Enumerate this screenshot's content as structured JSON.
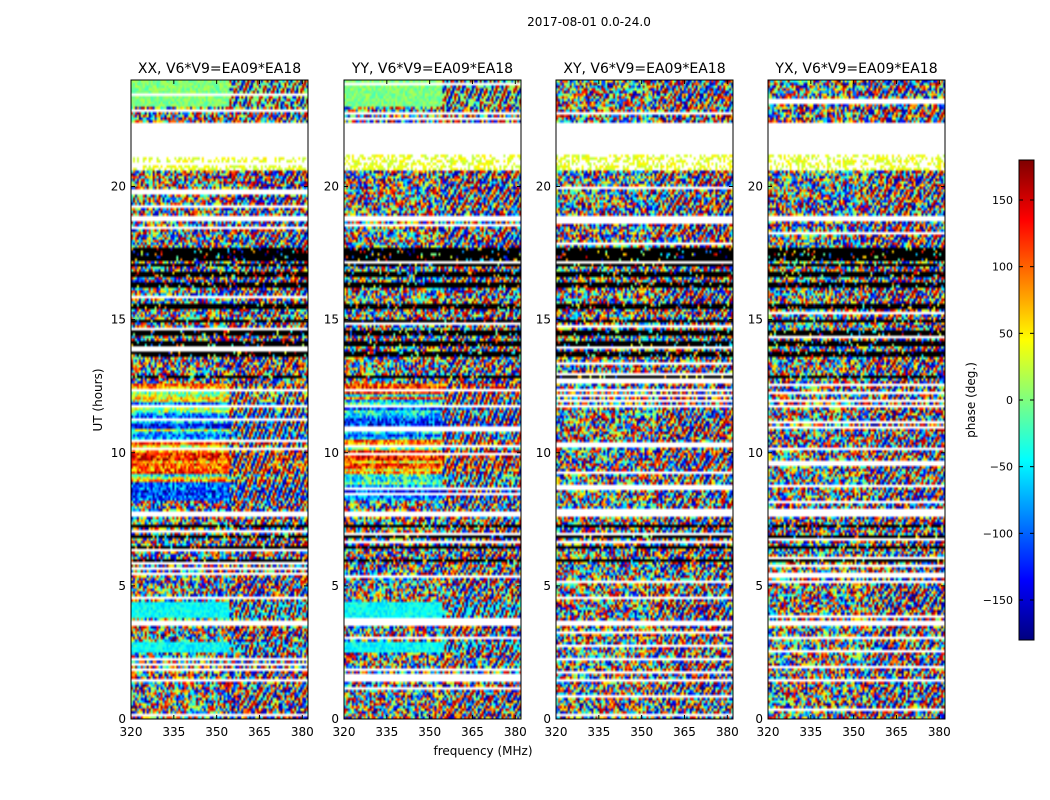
{
  "figure": {
    "suptitle": "2017-08-01 0.0-24.0",
    "xlabel": "frequency (MHz)",
    "ylabel": "UT (hours)",
    "colorbar_label": "phase (deg.)",
    "colorbar_ticks": [
      "150",
      "100",
      "50",
      "0",
      "−50",
      "−100",
      "−150"
    ],
    "colorbar_tick_values": [
      150,
      100,
      50,
      0,
      -50,
      -100,
      -150
    ],
    "colorbar_range": [
      -180,
      180
    ],
    "colormap": [
      "#00007f",
      "#0000ff",
      "#007fff",
      "#00ffff",
      "#7fff7f",
      "#ffff00",
      "#ff7f00",
      "#ff0000",
      "#7f0000"
    ]
  },
  "chart_data": {
    "type": "heatmap",
    "title": "2017-08-01 0.0-24.0",
    "xlabel": "frequency (MHz)",
    "ylabel": "UT (hours)",
    "xlim": [
      320,
      382
    ],
    "ylim": [
      0,
      24
    ],
    "xticks": [
      320,
      335,
      350,
      365,
      380
    ],
    "xtick_labels": [
      "320",
      "335",
      "350",
      "365",
      "380"
    ],
    "yticks": [
      0,
      5,
      10,
      15,
      20
    ],
    "ytick_labels": [
      "0",
      "5",
      "10",
      "15",
      "20"
    ],
    "value_label": "phase (deg.)",
    "value_range": [
      -180,
      180
    ],
    "panels": [
      {
        "title": "XX, V6*V9=EA09*EA18",
        "pol": "XX"
      },
      {
        "title": "YY, V6*V9=EA09*EA18",
        "pol": "YY"
      },
      {
        "title": "XY, V6*V9=EA09*EA18",
        "pol": "XY"
      },
      {
        "title": "YX, V6*V9=EA09*EA18",
        "pol": "YX"
      }
    ]
  }
}
